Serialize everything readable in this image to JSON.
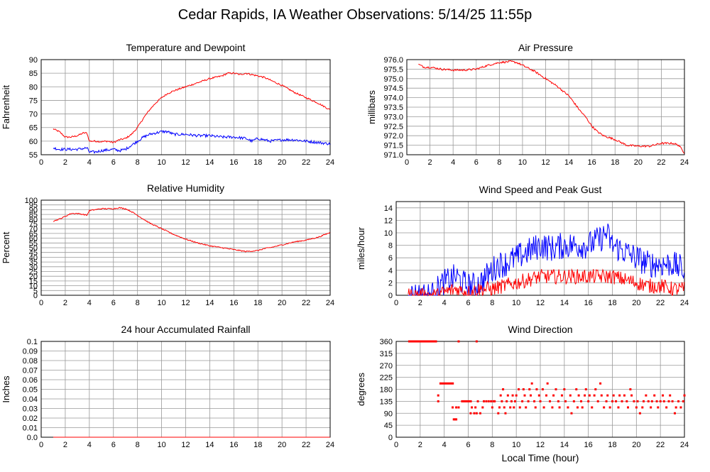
{
  "page_title": "Cedar Rapids, IA Weather Observations: 5/14/25 11:55p",
  "x_axis_label": "Local Time (hour)",
  "colors": {
    "red": "#ff0000",
    "blue": "#0000ff",
    "grid": "#999999",
    "frame": "#000000"
  },
  "chart_data": [
    {
      "id": "temp-dewpoint",
      "type": "line",
      "title": "Temperature and Dewpoint",
      "xlabel": "",
      "ylabel": "Fahrenheit",
      "xlim": [
        0,
        24
      ],
      "ylim": [
        55,
        90
      ],
      "xticks": [
        2,
        4,
        6,
        8,
        10,
        12,
        14,
        16,
        18,
        20,
        22,
        24
      ],
      "yticks": [
        55,
        60,
        65,
        70,
        75,
        80,
        85,
        90
      ],
      "grid": true,
      "series": [
        {
          "color": "#ff0000",
          "noise": 0.3,
          "x": [
            1.0,
            1.5,
            2.0,
            2.5,
            3.0,
            3.5,
            3.8,
            4.0,
            4.5,
            5.0,
            5.5,
            6.0,
            6.5,
            7.0,
            7.5,
            8.0,
            8.5,
            9.0,
            9.5,
            10.0,
            10.5,
            11.0,
            12.0,
            13.0,
            14.0,
            15.0,
            15.5,
            16.0,
            16.5,
            17.0,
            17.5,
            18.0,
            18.5,
            19.0,
            20.0,
            21.0,
            22.0,
            23.0,
            24.0
          ],
          "y": [
            64.5,
            63.5,
            61.5,
            61.5,
            62.0,
            63.0,
            63.0,
            60.0,
            60.0,
            59.8,
            60.0,
            59.5,
            60.5,
            61.0,
            62.5,
            65.0,
            68.5,
            71.5,
            74.0,
            76.0,
            77.5,
            78.5,
            80.0,
            81.5,
            83.0,
            84.0,
            85.0,
            85.0,
            84.5,
            85.0,
            84.5,
            84.0,
            83.5,
            82.5,
            80.5,
            78.0,
            76.0,
            74.0,
            71.5
          ]
        },
        {
          "color": "#0000ff",
          "noise": 0.5,
          "x": [
            1.0,
            1.5,
            2.0,
            3.0,
            3.8,
            4.0,
            4.5,
            5.0,
            6.0,
            6.5,
            7.0,
            7.5,
            8.0,
            8.5,
            9.0,
            9.5,
            10.0,
            10.5,
            11.0,
            12.0,
            13.0,
            14.0,
            15.0,
            16.0,
            17.0,
            17.5,
            18.0,
            18.5,
            19.0,
            20.0,
            21.0,
            22.0,
            23.0,
            24.0
          ],
          "y": [
            57.5,
            57.0,
            57.0,
            57.0,
            57.5,
            56.0,
            56.0,
            56.5,
            57.0,
            56.5,
            57.0,
            58.5,
            60.0,
            61.5,
            62.5,
            63.0,
            63.5,
            63.5,
            62.5,
            62.5,
            62.0,
            62.0,
            61.5,
            61.5,
            61.0,
            60.0,
            61.0,
            60.5,
            60.0,
            60.5,
            60.5,
            60.0,
            59.5,
            59.0
          ]
        }
      ]
    },
    {
      "id": "air-pressure",
      "type": "line",
      "title": "Air Pressure",
      "xlabel": "",
      "ylabel": "millibars",
      "xlim": [
        0,
        24
      ],
      "ylim": [
        971.0,
        976.0
      ],
      "xticks": [
        2,
        4,
        6,
        8,
        10,
        12,
        14,
        16,
        18,
        20,
        22,
        24
      ],
      "yticks": [
        "971.0",
        "971.5",
        "972.0",
        "972.5",
        "973.0",
        "973.5",
        "974.0",
        "974.5",
        "975.0",
        "975.5",
        "976.0"
      ],
      "grid": true,
      "series": [
        {
          "color": "#ff0000",
          "noise": 0.05,
          "x": [
            1.0,
            1.5,
            2.0,
            3.0,
            4.0,
            5.0,
            6.0,
            7.0,
            8.0,
            9.0,
            9.5,
            10.0,
            11.0,
            12.0,
            13.0,
            14.0,
            14.5,
            15.0,
            15.5,
            16.0,
            16.5,
            17.0,
            18.0,
            19.0,
            20.0,
            21.0,
            22.0,
            23.0,
            23.5,
            24.0
          ],
          "y": [
            975.75,
            975.6,
            975.6,
            975.5,
            975.45,
            975.45,
            975.5,
            975.7,
            975.85,
            975.9,
            975.85,
            975.7,
            975.4,
            975.0,
            974.6,
            974.1,
            973.7,
            973.3,
            972.95,
            972.5,
            972.2,
            972.0,
            971.8,
            971.5,
            971.45,
            971.45,
            971.6,
            971.6,
            971.5,
            971.1
          ]
        }
      ]
    },
    {
      "id": "relative-humidity",
      "type": "line",
      "title": "Relative Humidity",
      "xlabel": "",
      "ylabel": "Percent",
      "xlim": [
        0,
        24
      ],
      "ylim": [
        0,
        100
      ],
      "xticks": [
        2,
        4,
        6,
        8,
        10,
        12,
        14,
        16,
        18,
        20,
        22,
        24
      ],
      "yticks": [
        0,
        5,
        10,
        15,
        20,
        25,
        30,
        35,
        40,
        45,
        50,
        55,
        60,
        65,
        70,
        75,
        80,
        85,
        90,
        95,
        100
      ],
      "grid": true,
      "series": [
        {
          "color": "#ff0000",
          "noise": 0.6,
          "x": [
            1.0,
            1.5,
            2.0,
            2.5,
            3.0,
            3.5,
            3.8,
            4.0,
            4.5,
            5.0,
            5.5,
            6.0,
            6.5,
            7.0,
            7.5,
            8.0,
            8.5,
            9.0,
            9.5,
            10.0,
            11.0,
            12.0,
            13.0,
            14.0,
            15.0,
            16.0,
            17.0,
            18.0,
            18.5,
            19.0,
            20.0,
            21.0,
            22.0,
            23.0,
            24.0
          ],
          "y": [
            78,
            80,
            83,
            86,
            86,
            85,
            84,
            89,
            90,
            91,
            91,
            91,
            92,
            91,
            88,
            84,
            80,
            76,
            73,
            70,
            64,
            59,
            55,
            52,
            50,
            48,
            46,
            47,
            49,
            50,
            53,
            56,
            58,
            61,
            66
          ]
        }
      ]
    },
    {
      "id": "wind-speed",
      "type": "line",
      "title": "Wind Speed and Peak Gust",
      "xlabel": "",
      "ylabel": "miles/hour",
      "xlim": [
        0,
        24
      ],
      "ylim": [
        0,
        15
      ],
      "xticks": [
        2,
        4,
        6,
        8,
        10,
        12,
        14,
        16,
        18,
        20,
        22,
        24
      ],
      "yticks": [
        0,
        2,
        4,
        6,
        8,
        10,
        12,
        14
      ],
      "grid": true,
      "series": [
        {
          "color": "#0000ff",
          "noise": 2.2,
          "floor": 0,
          "x": [
            1.0,
            2.0,
            3.0,
            3.3,
            3.6,
            4.0,
            4.5,
            5.0,
            5.5,
            6.0,
            6.5,
            7.0,
            7.5,
            8.0,
            8.5,
            9.0,
            9.5,
            10.0,
            11.0,
            12.0,
            13.0,
            14.0,
            15.0,
            16.0,
            17.0,
            17.5,
            18.0,
            19.0,
            20.0,
            21.0,
            22.0,
            23.0,
            24.0
          ],
          "y": [
            0,
            0,
            0,
            0.5,
            1.5,
            2,
            2.5,
            3,
            2,
            1.5,
            1.5,
            2,
            3,
            4,
            5,
            5,
            5.5,
            6,
            7,
            8,
            7.5,
            8,
            8,
            8,
            9,
            10,
            8,
            7,
            6,
            5,
            5,
            5,
            4
          ]
        },
        {
          "color": "#ff0000",
          "noise": 1.2,
          "floor": 0,
          "x": [
            1.0,
            3.5,
            4.0,
            5.0,
            6.0,
            7.0,
            8.0,
            9.0,
            10.0,
            11.0,
            12.0,
            13.0,
            14.0,
            15.0,
            16.0,
            17.0,
            18.0,
            19.0,
            20.0,
            21.0,
            22.0,
            23.0,
            24.0
          ],
          "y": [
            0,
            0,
            0.5,
            1,
            0.5,
            1,
            1,
            1.5,
            2,
            2.5,
            3,
            3,
            3,
            3,
            3,
            3,
            3,
            2.5,
            2,
            1.5,
            1.5,
            1,
            1
          ]
        }
      ]
    },
    {
      "id": "rainfall",
      "type": "line",
      "title": "24 hour Accumulated Rainfall",
      "xlabel": "",
      "ylabel": "Inches",
      "xlim": [
        0,
        24
      ],
      "ylim": [
        0,
        0.1
      ],
      "xticks": [
        2,
        4,
        6,
        8,
        10,
        12,
        14,
        16,
        18,
        20,
        22,
        24
      ],
      "yticks": [
        "0.0",
        "0.01",
        "0.02",
        "0.03",
        "0.04",
        "0.05",
        "0.06",
        "0.07",
        "0.08",
        "0.09",
        "0.1"
      ],
      "grid": true,
      "series": [
        {
          "color": "#ff0000",
          "noise": 0,
          "x": [
            1.0,
            24.0
          ],
          "y": [
            0,
            0
          ]
        }
      ]
    },
    {
      "id": "wind-direction",
      "type": "scatter",
      "title": "Wind Direction",
      "xlabel": "Local Time (hour)",
      "ylabel": "degrees",
      "xlim": [
        0,
        24
      ],
      "ylim": [
        0,
        360
      ],
      "xticks": [
        2,
        4,
        6,
        8,
        10,
        12,
        14,
        16,
        18,
        20,
        22,
        24
      ],
      "yticks": [
        0,
        45,
        90,
        135,
        180,
        225,
        270,
        315,
        360
      ],
      "grid": true,
      "points_color": "#ff0000",
      "segments": [
        {
          "x": [
            1.0,
            3.4
          ],
          "y": 360
        },
        {
          "x": [
            3.6,
            4.8
          ],
          "y": 202
        },
        {
          "x": [
            5.4,
            6.3
          ],
          "y": 135
        }
      ],
      "points": [
        [
          3.5,
          157
        ],
        [
          3.5,
          135
        ],
        [
          5.2,
          360
        ],
        [
          6.7,
          360
        ],
        [
          4.7,
          112
        ],
        [
          4.8,
          67
        ],
        [
          4.9,
          67
        ],
        [
          5.0,
          67
        ],
        [
          5.0,
          112
        ],
        [
          5.2,
          112
        ],
        [
          6.2,
          90
        ],
        [
          6.3,
          112
        ],
        [
          6.5,
          90
        ],
        [
          6.6,
          112
        ],
        [
          6.7,
          90
        ],
        [
          6.8,
          135
        ],
        [
          7.0,
          90
        ],
        [
          7.2,
          112
        ],
        [
          7.3,
          135
        ],
        [
          7.5,
          135
        ],
        [
          7.7,
          135
        ],
        [
          7.9,
          135
        ],
        [
          8.0,
          112
        ],
        [
          8.1,
          135
        ],
        [
          8.2,
          135
        ],
        [
          8.5,
          90
        ],
        [
          8.6,
          112
        ],
        [
          8.7,
          157
        ],
        [
          8.8,
          135
        ],
        [
          8.9,
          180
        ],
        [
          9.0,
          112
        ],
        [
          9.1,
          90
        ],
        [
          9.2,
          135
        ],
        [
          9.3,
          157
        ],
        [
          9.5,
          112
        ],
        [
          9.6,
          135
        ],
        [
          9.7,
          157
        ],
        [
          9.8,
          112
        ],
        [
          9.9,
          135
        ],
        [
          10.0,
          157
        ],
        [
          10.2,
          180
        ],
        [
          10.3,
          112
        ],
        [
          10.5,
          135
        ],
        [
          10.6,
          180
        ],
        [
          10.7,
          157
        ],
        [
          10.8,
          112
        ],
        [
          11.0,
          135
        ],
        [
          11.1,
          180
        ],
        [
          11.2,
          157
        ],
        [
          11.3,
          202
        ],
        [
          11.5,
          135
        ],
        [
          11.6,
          112
        ],
        [
          11.7,
          180
        ],
        [
          11.9,
          157
        ],
        [
          12.0,
          135
        ],
        [
          12.2,
          180
        ],
        [
          12.3,
          112
        ],
        [
          12.5,
          157
        ],
        [
          12.6,
          202
        ],
        [
          12.8,
          135
        ],
        [
          13.0,
          112
        ],
        [
          13.1,
          157
        ],
        [
          13.3,
          180
        ],
        [
          13.5,
          135
        ],
        [
          13.6,
          112
        ],
        [
          13.8,
          157
        ],
        [
          14.0,
          180
        ],
        [
          14.1,
          135
        ],
        [
          14.3,
          112
        ],
        [
          14.5,
          157
        ],
        [
          14.6,
          90
        ],
        [
          14.8,
          135
        ],
        [
          15.0,
          180
        ],
        [
          15.1,
          112
        ],
        [
          15.2,
          157
        ],
        [
          15.4,
          135
        ],
        [
          15.5,
          112
        ],
        [
          15.7,
          157
        ],
        [
          15.8,
          180
        ],
        [
          16.0,
          135
        ],
        [
          16.1,
          157
        ],
        [
          16.3,
          112
        ],
        [
          16.5,
          157
        ],
        [
          16.6,
          180
        ],
        [
          16.8,
          135
        ],
        [
          17.0,
          202
        ],
        [
          17.1,
          157
        ],
        [
          17.3,
          112
        ],
        [
          17.5,
          135
        ],
        [
          17.6,
          157
        ],
        [
          17.8,
          112
        ],
        [
          18.0,
          135
        ],
        [
          18.1,
          157
        ],
        [
          18.3,
          135
        ],
        [
          18.5,
          112
        ],
        [
          18.6,
          157
        ],
        [
          18.8,
          135
        ],
        [
          19.0,
          157
        ],
        [
          19.2,
          135
        ],
        [
          19.3,
          112
        ],
        [
          19.5,
          180
        ],
        [
          19.6,
          157
        ],
        [
          19.8,
          135
        ],
        [
          20.0,
          112
        ],
        [
          20.1,
          135
        ],
        [
          20.3,
          90
        ],
        [
          20.5,
          112
        ],
        [
          20.6,
          135
        ],
        [
          20.8,
          157
        ],
        [
          21.0,
          135
        ],
        [
          21.2,
          112
        ],
        [
          21.3,
          135
        ],
        [
          21.5,
          157
        ],
        [
          21.7,
          135
        ],
        [
          21.8,
          112
        ],
        [
          22.0,
          135
        ],
        [
          22.2,
          157
        ],
        [
          22.3,
          135
        ],
        [
          22.5,
          112
        ],
        [
          22.7,
          135
        ],
        [
          22.8,
          157
        ],
        [
          23.0,
          135
        ],
        [
          23.2,
          90
        ],
        [
          23.3,
          112
        ],
        [
          23.5,
          135
        ],
        [
          23.7,
          112
        ],
        [
          23.9,
          135
        ],
        [
          24.0,
          157
        ]
      ]
    }
  ]
}
